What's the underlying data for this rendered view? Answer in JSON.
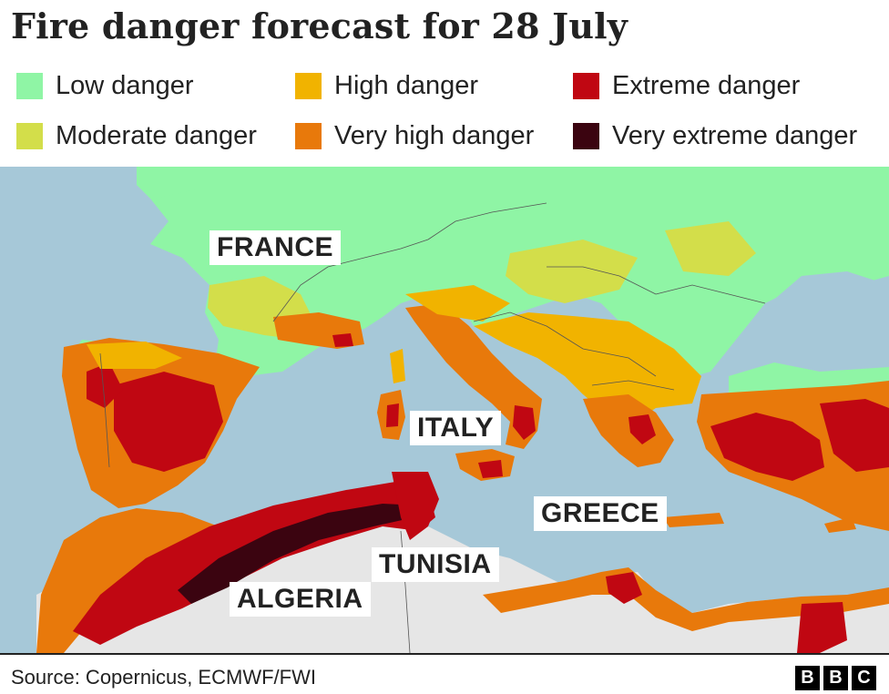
{
  "title": "Fire danger forecast for 28 July",
  "legend": [
    {
      "label": "Low danger",
      "color": "#8ff5a5"
    },
    {
      "label": "Moderate danger",
      "color": "#d3de4a"
    },
    {
      "label": "High danger",
      "color": "#f1b300"
    },
    {
      "label": "Very high danger",
      "color": "#e8790b"
    },
    {
      "label": "Extreme danger",
      "color": "#c00712"
    },
    {
      "label": "Very extreme danger",
      "color": "#3b0410"
    }
  ],
  "map": {
    "sea_color": "#a6c8d8",
    "no_data_color": "#e6e6e6",
    "labels": {
      "france": "FRANCE",
      "italy": "ITALY",
      "greece": "GREECE",
      "tunisia": "TUNISIA",
      "algeria": "ALGERIA"
    }
  },
  "footer": {
    "source": "Source: Copernicus, ECMWF/FWI",
    "logo": [
      "B",
      "B",
      "C"
    ]
  }
}
